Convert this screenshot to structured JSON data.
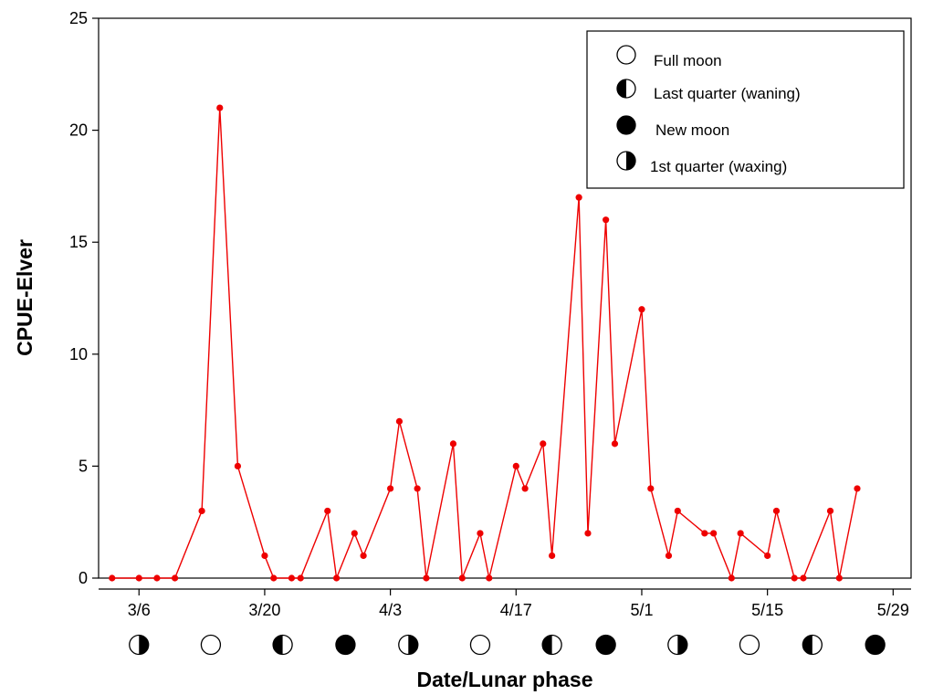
{
  "chart_data": {
    "type": "line",
    "xlabel": "Date/Lunar phase",
    "ylabel": "CPUE-Elver",
    "ylim": [
      0,
      25
    ],
    "yticks": [
      0,
      5,
      10,
      15,
      20,
      25
    ],
    "xlim_days": [
      -4.5,
      86
    ],
    "x_ticks": [
      "3/6",
      "3/20",
      "4/3",
      "4/17",
      "5/1",
      "5/15",
      "5/29"
    ],
    "grid": false,
    "legend_position": "top-right",
    "colors": {
      "series": "#ee0000",
      "axis": "#000000"
    },
    "series": [
      {
        "points": [
          {
            "x": "3/3",
            "y": 0
          },
          {
            "x": "3/6",
            "y": 0
          },
          {
            "x": "3/8",
            "y": 0
          },
          {
            "x": "3/10",
            "y": 0
          },
          {
            "x": "3/13",
            "y": 3
          },
          {
            "x": "3/15",
            "y": 21
          },
          {
            "x": "3/17",
            "y": 5
          },
          {
            "x": "3/20",
            "y": 1
          },
          {
            "x": "3/21",
            "y": 0
          },
          {
            "x": "3/23",
            "y": 0
          },
          {
            "x": "3/24",
            "y": 0
          },
          {
            "x": "3/27",
            "y": 3
          },
          {
            "x": "3/28",
            "y": 0
          },
          {
            "x": "3/30",
            "y": 2
          },
          {
            "x": "3/31",
            "y": 1
          },
          {
            "x": "4/3",
            "y": 4
          },
          {
            "x": "4/4",
            "y": 7
          },
          {
            "x": "4/6",
            "y": 4
          },
          {
            "x": "4/7",
            "y": 0
          },
          {
            "x": "4/10",
            "y": 6
          },
          {
            "x": "4/11",
            "y": 0
          },
          {
            "x": "4/13",
            "y": 2
          },
          {
            "x": "4/14",
            "y": 0
          },
          {
            "x": "4/17",
            "y": 5
          },
          {
            "x": "4/18",
            "y": 4
          },
          {
            "x": "4/20",
            "y": 6
          },
          {
            "x": "4/21",
            "y": 1
          },
          {
            "x": "4/24",
            "y": 17
          },
          {
            "x": "4/25",
            "y": 2
          },
          {
            "x": "4/27",
            "y": 16
          },
          {
            "x": "4/28",
            "y": 6
          },
          {
            "x": "5/1",
            "y": 12
          },
          {
            "x": "5/2",
            "y": 4
          },
          {
            "x": "5/4",
            "y": 1
          },
          {
            "x": "5/5",
            "y": 3
          },
          {
            "x": "5/8",
            "y": 2
          },
          {
            "x": "5/9",
            "y": 2
          },
          {
            "x": "5/11",
            "y": 0
          },
          {
            "x": "5/12",
            "y": 2
          },
          {
            "x": "5/15",
            "y": 1
          },
          {
            "x": "5/16",
            "y": 3
          },
          {
            "x": "5/18",
            "y": 0
          },
          {
            "x": "5/19",
            "y": 0
          },
          {
            "x": "5/22",
            "y": 3
          },
          {
            "x": "5/23",
            "y": 0
          },
          {
            "x": "5/25",
            "y": 4
          }
        ]
      }
    ],
    "lunar_phases": [
      {
        "date": "3/6",
        "phase": "first"
      },
      {
        "date": "3/14",
        "phase": "full"
      },
      {
        "date": "3/22",
        "phase": "last"
      },
      {
        "date": "3/29",
        "phase": "new"
      },
      {
        "date": "4/5",
        "phase": "first"
      },
      {
        "date": "4/13",
        "phase": "full"
      },
      {
        "date": "4/21",
        "phase": "last"
      },
      {
        "date": "4/27",
        "phase": "new"
      },
      {
        "date": "5/5",
        "phase": "first"
      },
      {
        "date": "5/13",
        "phase": "full"
      },
      {
        "date": "5/20",
        "phase": "last"
      },
      {
        "date": "5/27",
        "phase": "new"
      }
    ],
    "legend": [
      {
        "label": "Full moon",
        "phase": "full"
      },
      {
        "label": "Last quarter (waning)",
        "phase": "last"
      },
      {
        "label": "New moon",
        "phase": "new"
      },
      {
        "label": "1st quarter (waxing)",
        "phase": "first"
      }
    ]
  }
}
